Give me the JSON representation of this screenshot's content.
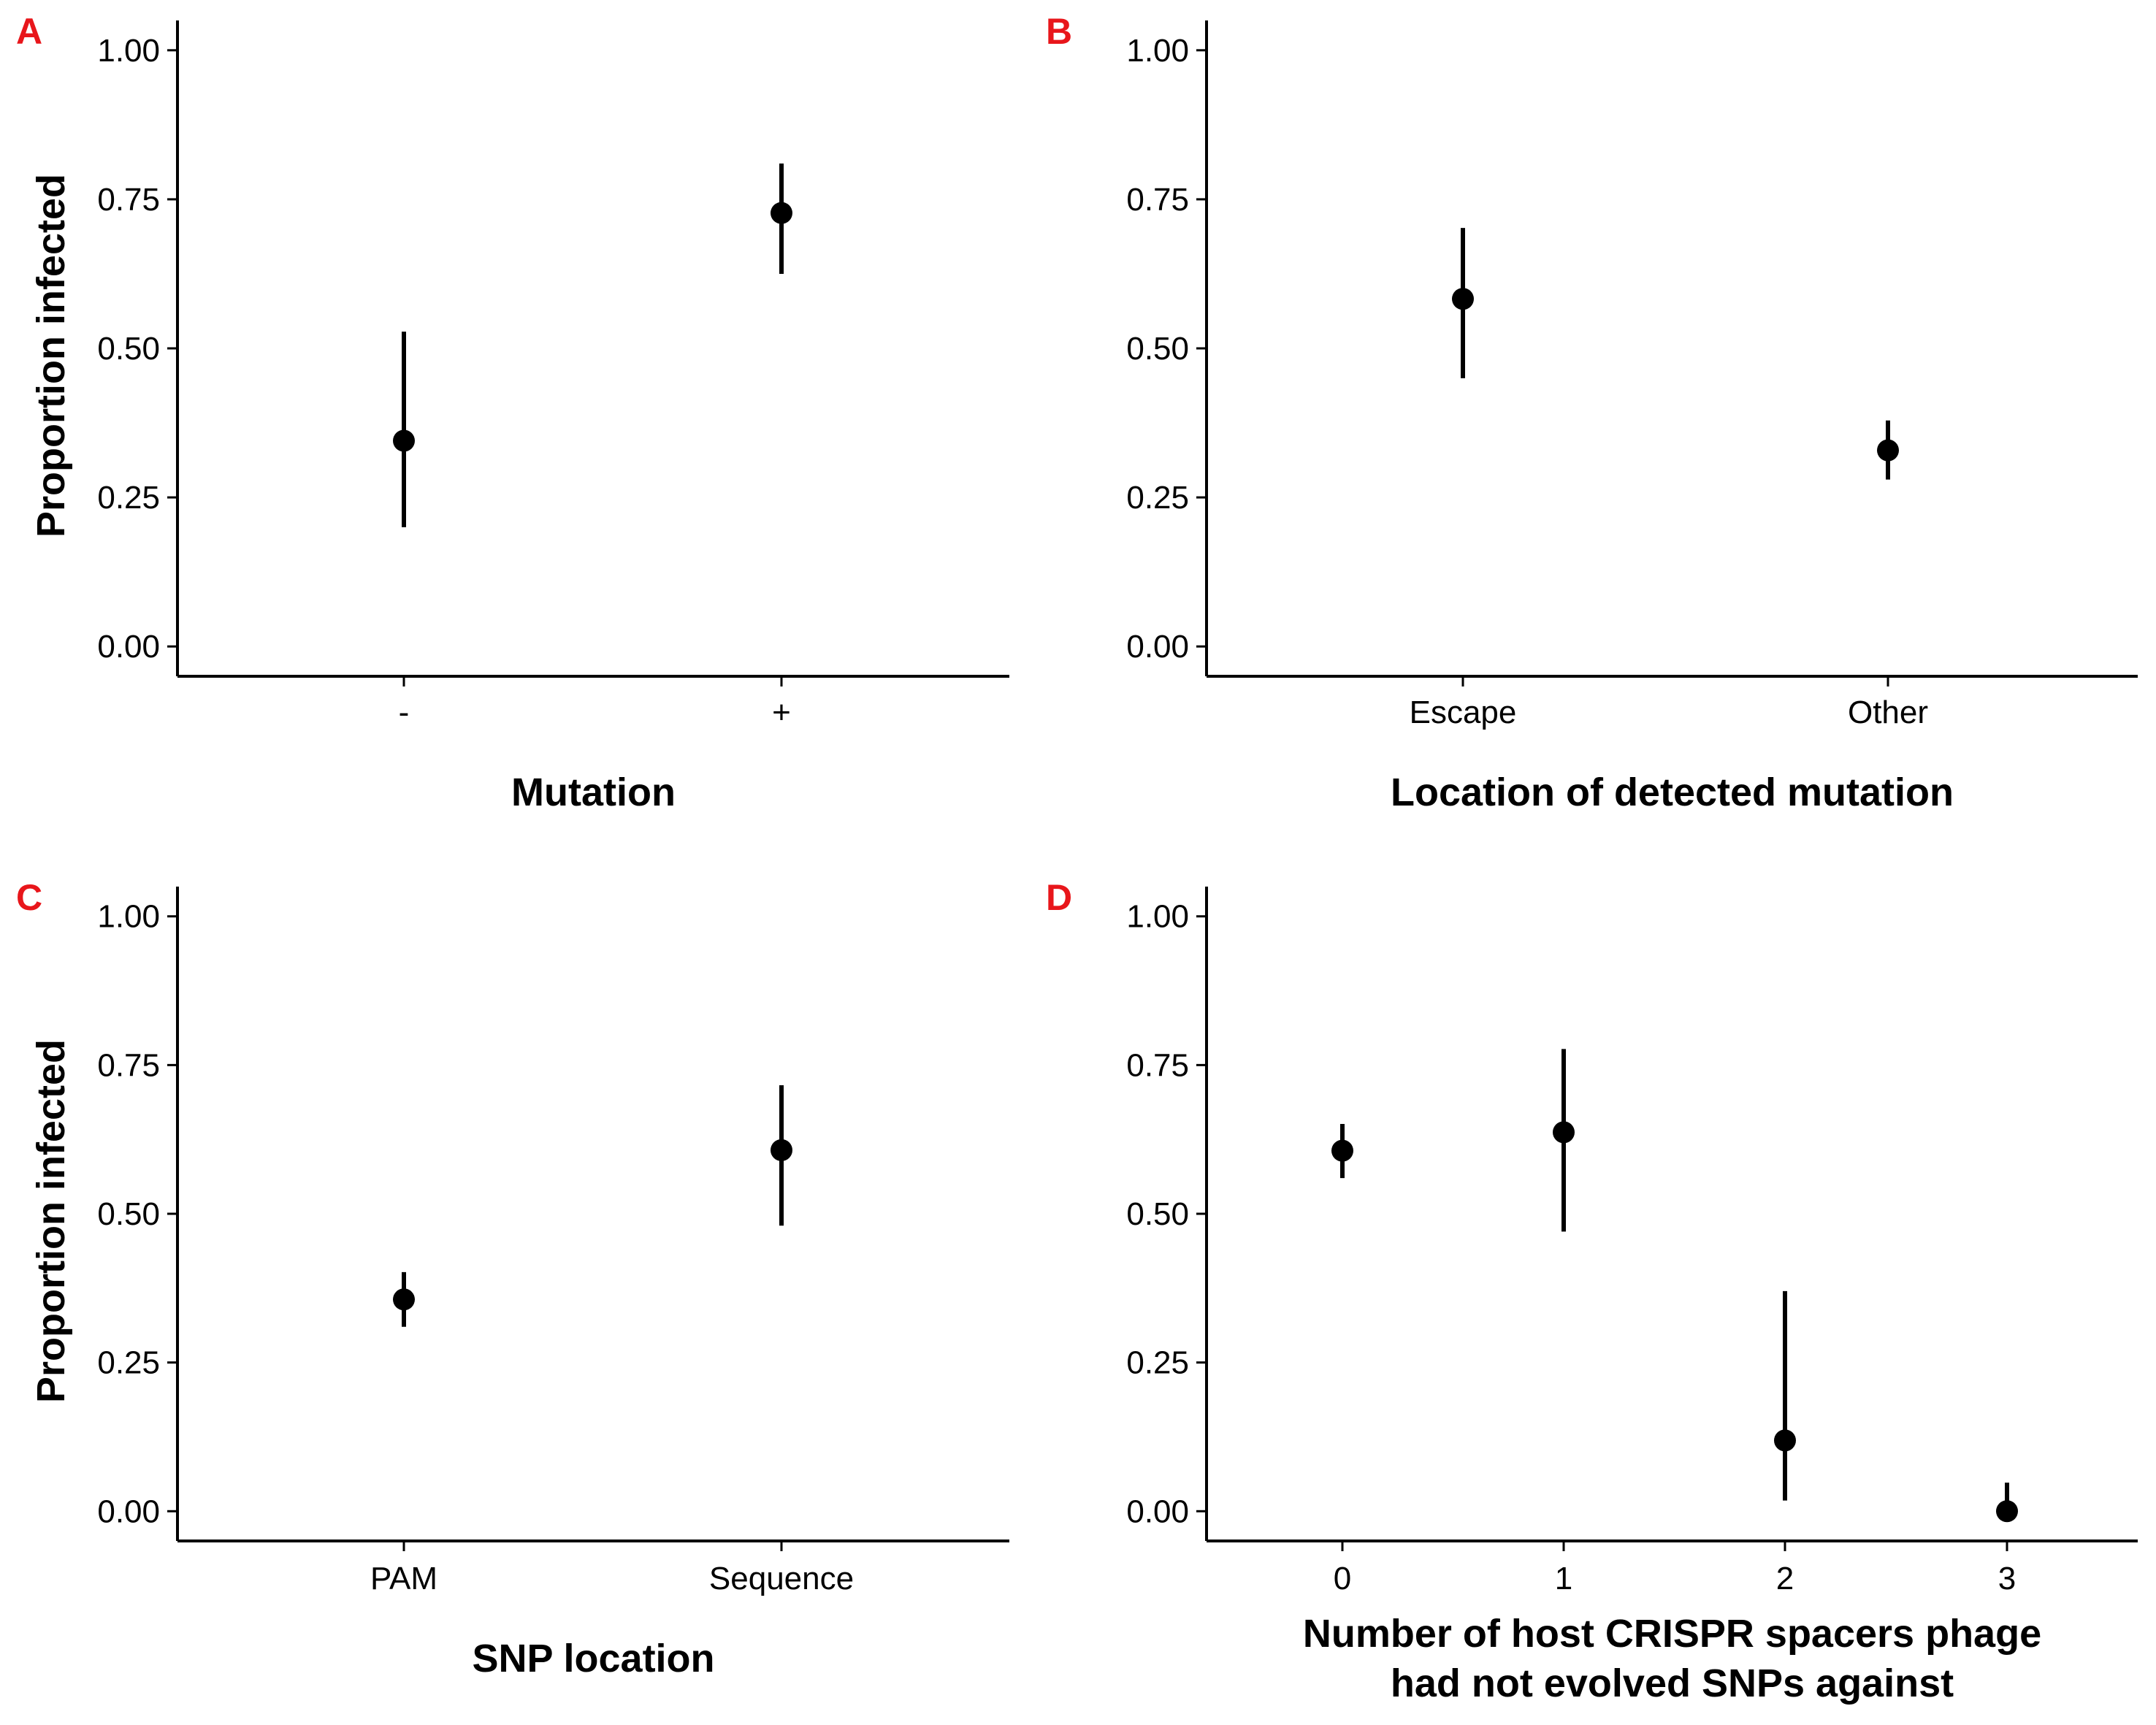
{
  "colors": {
    "panel_letter": "#e8161b",
    "ink": "#000000"
  },
  "y_ticks": [
    "0.00",
    "0.25",
    "0.50",
    "0.75",
    "1.00"
  ],
  "chart_data": [
    {
      "panel": "A",
      "type": "scatter",
      "xlabel": [
        "Mutation"
      ],
      "ylabel": "Proportion infected",
      "ylim": [
        -0.05,
        1.05
      ],
      "y_ticks": [
        0,
        0.25,
        0.5,
        0.75,
        1.0
      ],
      "categories": [
        "-",
        "+"
      ],
      "values": [
        0.345,
        0.727
      ],
      "lower": [
        0.2,
        0.625
      ],
      "upper": [
        0.528,
        0.81
      ],
      "grid": false
    },
    {
      "panel": "B",
      "type": "scatter",
      "xlabel": [
        "Location of detected mutation"
      ],
      "ylabel": "",
      "ylim": [
        -0.05,
        1.05
      ],
      "y_ticks": [
        0,
        0.25,
        0.5,
        0.75,
        1.0
      ],
      "categories": [
        "Escape",
        "Other"
      ],
      "values": [
        0.583,
        0.329
      ],
      "lower": [
        0.45,
        0.28
      ],
      "upper": [
        0.702,
        0.379
      ],
      "grid": false
    },
    {
      "panel": "C",
      "type": "scatter",
      "xlabel": [
        "SNP location"
      ],
      "ylabel": "Proportion infected",
      "ylim": [
        -0.05,
        1.05
      ],
      "y_ticks": [
        0,
        0.25,
        0.5,
        0.75,
        1.0
      ],
      "categories": [
        "PAM",
        "Sequence"
      ],
      "values": [
        0.356,
        0.607
      ],
      "lower": [
        0.31,
        0.48
      ],
      "upper": [
        0.402,
        0.716
      ],
      "grid": false
    },
    {
      "panel": "D",
      "type": "scatter",
      "xlabel": [
        "Number of host CRISPR spacers phage",
        "had not evolved SNPs against"
      ],
      "ylabel": "",
      "ylim": [
        -0.05,
        1.05
      ],
      "y_ticks": [
        0,
        0.25,
        0.5,
        0.75,
        1.0
      ],
      "categories": [
        "0",
        "1",
        "2",
        "3"
      ],
      "values": [
        0.606,
        0.637,
        0.119,
        0.0
      ],
      "lower": [
        0.56,
        0.47,
        0.018,
        0.0
      ],
      "upper": [
        0.651,
        0.777,
        0.37,
        0.048
      ],
      "grid": false
    }
  ]
}
